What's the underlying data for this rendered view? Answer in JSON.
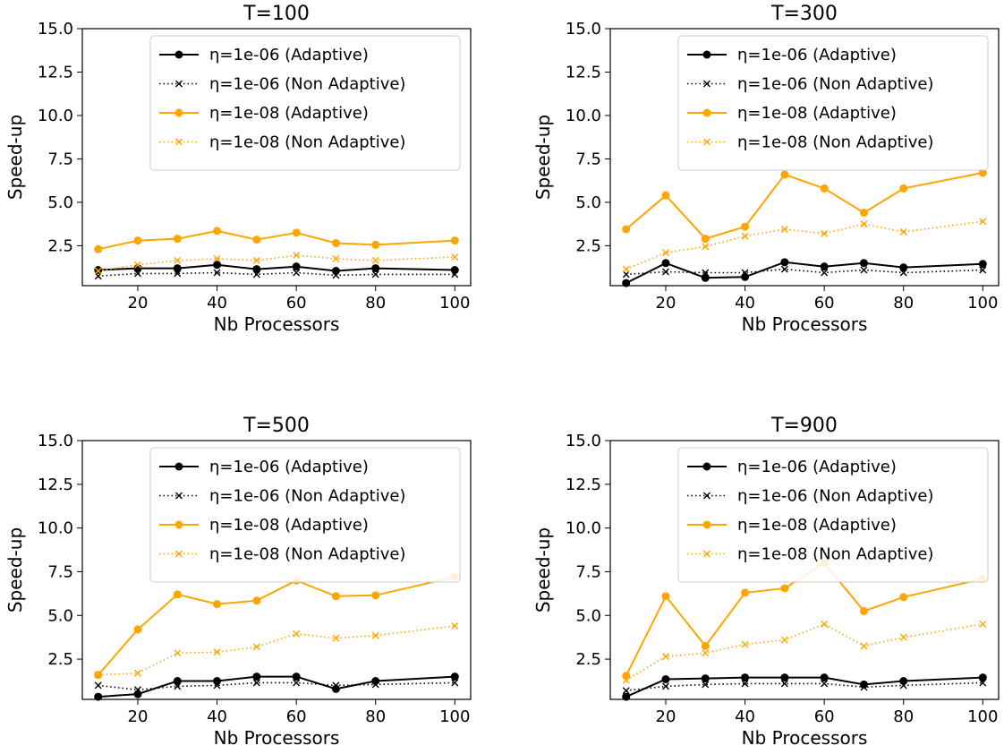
{
  "chart_data": [
    {
      "type": "line",
      "title": "T=100",
      "xlabel": "Nb Processors",
      "ylabel": "Speed-up",
      "x": [
        10,
        20,
        30,
        40,
        50,
        60,
        70,
        80,
        100
      ],
      "xlim": [
        6,
        104
      ],
      "ylim": [
        0.2,
        15.0
      ],
      "xticks": [
        "20",
        "40",
        "60",
        "80",
        "100"
      ],
      "yticks": [
        "2.5",
        "5.0",
        "7.5",
        "10.0",
        "12.5",
        "15.0"
      ],
      "legend": "top-right",
      "grid": false,
      "series": [
        {
          "name": "η=1e-06 (Adaptive)",
          "color": "#000000",
          "style": "solid",
          "marker": "circle",
          "values": [
            1.1,
            1.2,
            1.2,
            1.4,
            1.15,
            1.3,
            1.05,
            1.2,
            1.1
          ]
        },
        {
          "name": "η=1e-06 (Non Adaptive)",
          "color": "#000000",
          "style": "dotted",
          "marker": "x",
          "values": [
            0.75,
            0.9,
            0.9,
            0.95,
            0.85,
            0.95,
            0.8,
            0.85,
            0.85
          ]
        },
        {
          "name": "η=1e-08 (Adaptive)",
          "color": "#FFA500",
          "style": "solid",
          "marker": "circle",
          "values": [
            2.3,
            2.8,
            2.9,
            3.35,
            2.85,
            3.25,
            2.65,
            2.55,
            2.8
          ]
        },
        {
          "name": "η=1e-08 (Non Adaptive)",
          "color": "#FFA500",
          "style": "dotted",
          "marker": "x",
          "values": [
            1.05,
            1.4,
            1.65,
            1.75,
            1.65,
            1.95,
            1.75,
            1.65,
            1.85
          ]
        }
      ]
    },
    {
      "type": "line",
      "title": "T=300",
      "xlabel": "Nb Processors",
      "ylabel": "Speed-up",
      "x": [
        10,
        20,
        30,
        40,
        50,
        60,
        70,
        80,
        100
      ],
      "xlim": [
        6,
        104
      ],
      "ylim": [
        0.2,
        15.0
      ],
      "xticks": [
        "20",
        "40",
        "60",
        "80",
        "100"
      ],
      "yticks": [
        "2.5",
        "5.0",
        "7.5",
        "10.0",
        "12.5",
        "15.0"
      ],
      "legend": "top-right",
      "grid": false,
      "series": [
        {
          "name": "η=1e-06 (Adaptive)",
          "color": "#000000",
          "style": "solid",
          "marker": "circle",
          "values": [
            0.35,
            1.5,
            0.65,
            0.7,
            1.55,
            1.3,
            1.5,
            1.25,
            1.45
          ]
        },
        {
          "name": "η=1e-06 (Non Adaptive)",
          "color": "#000000",
          "style": "dotted",
          "marker": "x",
          "values": [
            0.85,
            1.0,
            0.95,
            0.95,
            1.15,
            0.95,
            1.1,
            0.95,
            1.1
          ]
        },
        {
          "name": "η=1e-08 (Adaptive)",
          "color": "#FFA500",
          "style": "solid",
          "marker": "circle",
          "values": [
            3.45,
            5.4,
            2.9,
            3.6,
            6.6,
            5.8,
            4.4,
            5.8,
            6.7
          ]
        },
        {
          "name": "η=1e-08 (Non Adaptive)",
          "color": "#FFA500",
          "style": "dotted",
          "marker": "x",
          "values": [
            1.15,
            2.1,
            2.45,
            3.05,
            3.45,
            3.2,
            3.75,
            3.3,
            3.9
          ]
        }
      ]
    },
    {
      "type": "line",
      "title": "T=500",
      "xlabel": "Nb Processors",
      "ylabel": "Speed-up",
      "x": [
        10,
        20,
        30,
        40,
        50,
        60,
        70,
        80,
        100
      ],
      "xlim": [
        6,
        104
      ],
      "ylim": [
        0.2,
        15.0
      ],
      "xticks": [
        "20",
        "40",
        "60",
        "80",
        "100"
      ],
      "yticks": [
        "2.5",
        "5.0",
        "7.5",
        "10.0",
        "12.5",
        "15.0"
      ],
      "legend": "top-right",
      "grid": false,
      "series": [
        {
          "name": "η=1e-06 (Adaptive)",
          "color": "#000000",
          "style": "solid",
          "marker": "circle",
          "values": [
            0.35,
            0.5,
            1.25,
            1.25,
            1.5,
            1.5,
            0.8,
            1.25,
            1.5
          ]
        },
        {
          "name": "η=1e-06 (Non Adaptive)",
          "color": "#000000",
          "style": "dotted",
          "marker": "x",
          "values": [
            1.0,
            0.75,
            0.95,
            1.0,
            1.15,
            1.15,
            1.0,
            1.05,
            1.15
          ]
        },
        {
          "name": "η=1e-08 (Adaptive)",
          "color": "#FFA500",
          "style": "solid",
          "marker": "circle",
          "values": [
            1.6,
            4.2,
            6.2,
            5.65,
            5.85,
            7.0,
            6.1,
            6.15,
            7.2
          ]
        },
        {
          "name": "η=1e-08 (Non Adaptive)",
          "color": "#FFA500",
          "style": "dotted",
          "marker": "x",
          "values": [
            1.6,
            1.7,
            2.85,
            2.9,
            3.2,
            3.95,
            3.7,
            3.85,
            4.4
          ]
        }
      ]
    },
    {
      "type": "line",
      "title": "T=900",
      "xlabel": "Nb Processors",
      "ylabel": "Speed-up",
      "x": [
        10,
        20,
        30,
        40,
        50,
        60,
        70,
        80,
        100
      ],
      "xlim": [
        6,
        104
      ],
      "ylim": [
        0.2,
        15.0
      ],
      "xticks": [
        "20",
        "40",
        "60",
        "80",
        "100"
      ],
      "yticks": [
        "2.5",
        "5.0",
        "7.5",
        "10.0",
        "12.5",
        "15.0"
      ],
      "legend": "top-right",
      "grid": false,
      "series": [
        {
          "name": "η=1e-06 (Adaptive)",
          "color": "#000000",
          "style": "solid",
          "marker": "circle",
          "values": [
            0.35,
            1.35,
            1.4,
            1.45,
            1.45,
            1.45,
            1.05,
            1.25,
            1.45
          ]
        },
        {
          "name": "η=1e-06 (Non Adaptive)",
          "color": "#000000",
          "style": "dotted",
          "marker": "x",
          "values": [
            0.7,
            0.95,
            1.05,
            1.1,
            1.1,
            1.1,
            0.9,
            1.0,
            1.15
          ]
        },
        {
          "name": "η=1e-08 (Adaptive)",
          "color": "#FFA500",
          "style": "solid",
          "marker": "circle",
          "values": [
            1.55,
            6.1,
            3.25,
            6.3,
            6.55,
            8.0,
            5.25,
            6.05,
            7.1
          ]
        },
        {
          "name": "η=1e-08 (Non Adaptive)",
          "color": "#FFA500",
          "style": "dotted",
          "marker": "x",
          "values": [
            1.3,
            2.65,
            2.85,
            3.35,
            3.6,
            4.5,
            3.25,
            3.75,
            4.5
          ]
        }
      ]
    }
  ]
}
